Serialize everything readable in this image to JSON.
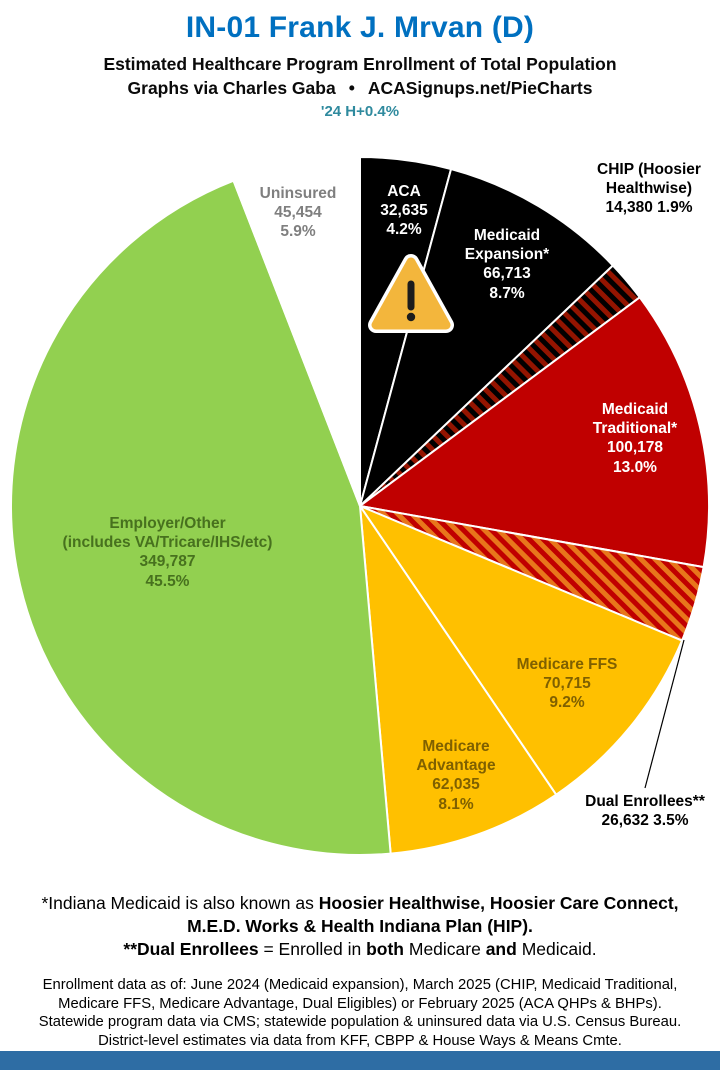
{
  "header": {
    "title": "IN-01 Frank J. Mrvan (D)",
    "subtitle": "Estimated Healthcare Program Enrollment of Total Population",
    "credit": {
      "prefix": "Graphs via Charles Gaba",
      "bullet": "•",
      "site": "ACASignups.net/PieCharts"
    },
    "trend": "'24 H+0.4%"
  },
  "colors": {
    "title": "#0070C0",
    "trend": "#2F8A9E",
    "footer_bar": "#2E6DA4",
    "slice_border": "#FFFFFF"
  },
  "icons": {
    "warning": {
      "fill": "#F3B63C",
      "outline": "#FFFFFF",
      "mark": "#1C1C1C"
    }
  },
  "chart_data": {
    "type": "pie",
    "title": "Estimated Healthcare Program Enrollment of Total Population",
    "direction": "clockwise",
    "start_angle_deg": 0,
    "slices": [
      {
        "id": "aca",
        "label": "ACA",
        "value": 32635,
        "pct": 4.2,
        "color": "#000000",
        "hatch": null,
        "text_color": "#FFFFFF",
        "display_lines": [
          "ACA",
          "32,635",
          "4.2%"
        ]
      },
      {
        "id": "medicaid-expansion",
        "label": "Medicaid Expansion*",
        "value": 66713,
        "pct": 8.7,
        "color": "#000000",
        "hatch": null,
        "text_color": "#FFFFFF",
        "display_lines": [
          "Medicaid",
          "Expansion*",
          "66,713",
          "8.7%"
        ]
      },
      {
        "id": "chip",
        "label": "CHIP (Hoosier Healthwise)",
        "value": 14380,
        "pct": 1.9,
        "color": "#941400",
        "hatch": "#000000",
        "text_color": "#000000",
        "display_lines": [
          "CHIP (Hoosier",
          "Healthwise)",
          "14,380 1.9%"
        ]
      },
      {
        "id": "medicaid-traditional",
        "label": "Medicaid Traditional*",
        "value": 100178,
        "pct": 13.0,
        "color": "#C00000",
        "hatch": null,
        "text_color": "#FFFFFF",
        "display_lines": [
          "Medicaid",
          "Traditional*",
          "100,178",
          "13.0%"
        ]
      },
      {
        "id": "dual-enrollees",
        "label": "Dual Enrollees**",
        "value": 26632,
        "pct": 3.5,
        "color": "#E8761B",
        "hatch": "#C00000",
        "text_color": "#000000",
        "display_lines": [
          "Dual Enrollees**",
          "26,632 3.5%"
        ]
      },
      {
        "id": "medicare-ffs",
        "label": "Medicare FFS",
        "value": 70715,
        "pct": 9.2,
        "color": "#FFC000",
        "hatch": null,
        "text_color": "#7F6000",
        "display_lines": [
          "Medicare FFS",
          "70,715",
          "9.2%"
        ]
      },
      {
        "id": "medicare-advantage",
        "label": "Medicare Advantage",
        "value": 62035,
        "pct": 8.1,
        "color": "#FFC000",
        "hatch": null,
        "text_color": "#7F6000",
        "display_lines": [
          "Medicare",
          "Advantage",
          "62,035",
          "8.1%"
        ]
      },
      {
        "id": "employer-other",
        "label": "Employer/Other (includes VA/Tricare/IHS/etc)",
        "value": 349787,
        "pct": 45.5,
        "color": "#92D050",
        "hatch": null,
        "text_color": "#47711E",
        "display_lines": [
          "Employer/Other",
          "(includes VA/Tricare/IHS/etc)",
          "349,787",
          "45.5%"
        ]
      },
      {
        "id": "uninsured",
        "label": "Uninsured",
        "value": 45454,
        "pct": 5.9,
        "color": "#FFFFFF",
        "hatch": null,
        "text_color": "#7F7F7F",
        "display_lines": [
          "Uninsured",
          "45,454",
          "5.9%"
        ]
      }
    ]
  },
  "footnotes": [
    [
      {
        "t": "*Indiana Medicaid is also known as ",
        "b": false
      },
      {
        "t": "Hoosier Healthwise, Hoosier Care Connect,",
        "b": true
      }
    ],
    [
      {
        "t": "M.E.D. Works & Health Indiana Plan (HIP).",
        "b": true
      }
    ],
    [
      {
        "t": "**Dual Enrollees",
        "b": true
      },
      {
        "t": " = Enrolled in ",
        "b": false
      },
      {
        "t": "both",
        "b": true
      },
      {
        "t": " Medicare ",
        "b": false
      },
      {
        "t": "and",
        "b": true
      },
      {
        "t": " Medicaid.",
        "b": false
      }
    ]
  ],
  "data_note_lines": [
    "Enrollment data as of: June 2024 (Medicaid expansion), March 2025 (CHIP, Medicaid Traditional,",
    "Medicare FFS, Medicare Advantage, Dual Eligibles) or February 2025 (ACA QHPs & BHPs).",
    "Statewide program data via CMS; statewide population & uninsured data via U.S. Census Bureau.",
    "District-level estimates via data from KFF, CBPP & House Ways & Means Cmte."
  ]
}
